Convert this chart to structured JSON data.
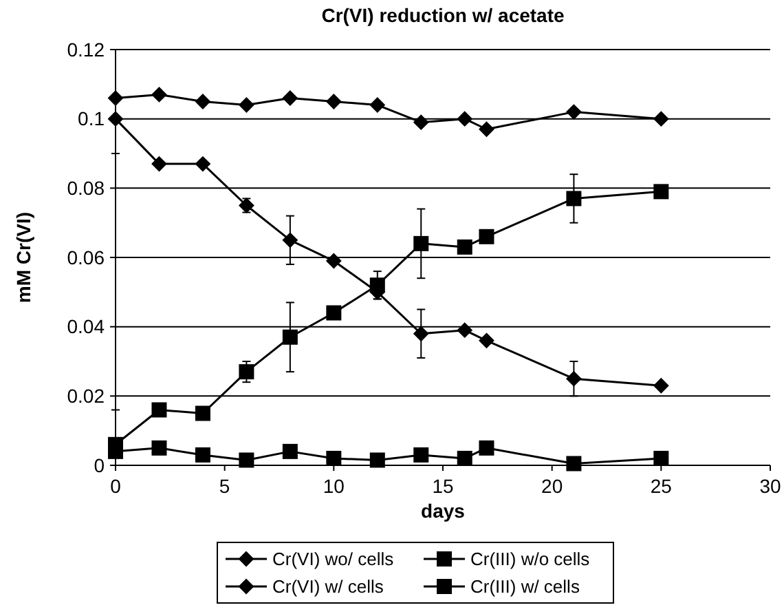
{
  "chart_data": {
    "type": "line",
    "title": "Cr(VI) reduction w/ acetate",
    "xlabel": "days",
    "ylabel": "mM Cr(VI)",
    "x": [
      0,
      2,
      4,
      6,
      8,
      10,
      12,
      14,
      16,
      17,
      21,
      25
    ],
    "xlim": [
      0,
      30
    ],
    "xticks": [
      0,
      5,
      10,
      15,
      20,
      25,
      30
    ],
    "ylim": [
      0,
      0.12
    ],
    "yticks": [
      0,
      0.02,
      0.04,
      0.06,
      0.08,
      0.1,
      0.12
    ],
    "grid": "y",
    "legend": "bottom",
    "series": [
      {
        "name": "Cr(VI) wo/ cells",
        "color": "#000000",
        "marker": "diamond",
        "values": [
          0.106,
          0.107,
          0.105,
          0.104,
          0.106,
          0.105,
          0.104,
          0.099,
          0.1,
          0.097,
          0.102,
          0.1
        ]
      },
      {
        "name": "Cr(III) w/o cells",
        "color": "#000000",
        "marker": "square",
        "values": [
          0.004,
          0.005,
          0.003,
          0.0015,
          0.004,
          0.002,
          0.0015,
          0.003,
          0.002,
          0.005,
          0.0005,
          0.002
        ]
      },
      {
        "name": "Cr(VI) w/ cells",
        "color": "#000000",
        "marker": "diamond",
        "values": [
          0.1,
          0.087,
          0.087,
          0.075,
          0.065,
          0.059,
          0.05,
          0.038,
          0.039,
          0.036,
          0.025,
          0.023
        ],
        "errors": [
          [
            0.09,
            0.1
          ],
          null,
          null,
          0.002,
          0.007,
          null,
          0.002,
          0.007,
          null,
          null,
          0.005,
          null
        ]
      },
      {
        "name": "Cr(III) w/ cells",
        "color": "#000000",
        "marker": "square",
        "values": [
          0.006,
          0.016,
          0.015,
          0.027,
          0.037,
          0.044,
          0.052,
          0.064,
          0.063,
          0.066,
          0.077,
          0.079
        ],
        "errors": [
          [
            0.006,
            0.016
          ],
          null,
          null,
          0.003,
          0.01,
          null,
          0.004,
          0.01,
          null,
          null,
          0.007,
          null
        ]
      }
    ]
  }
}
